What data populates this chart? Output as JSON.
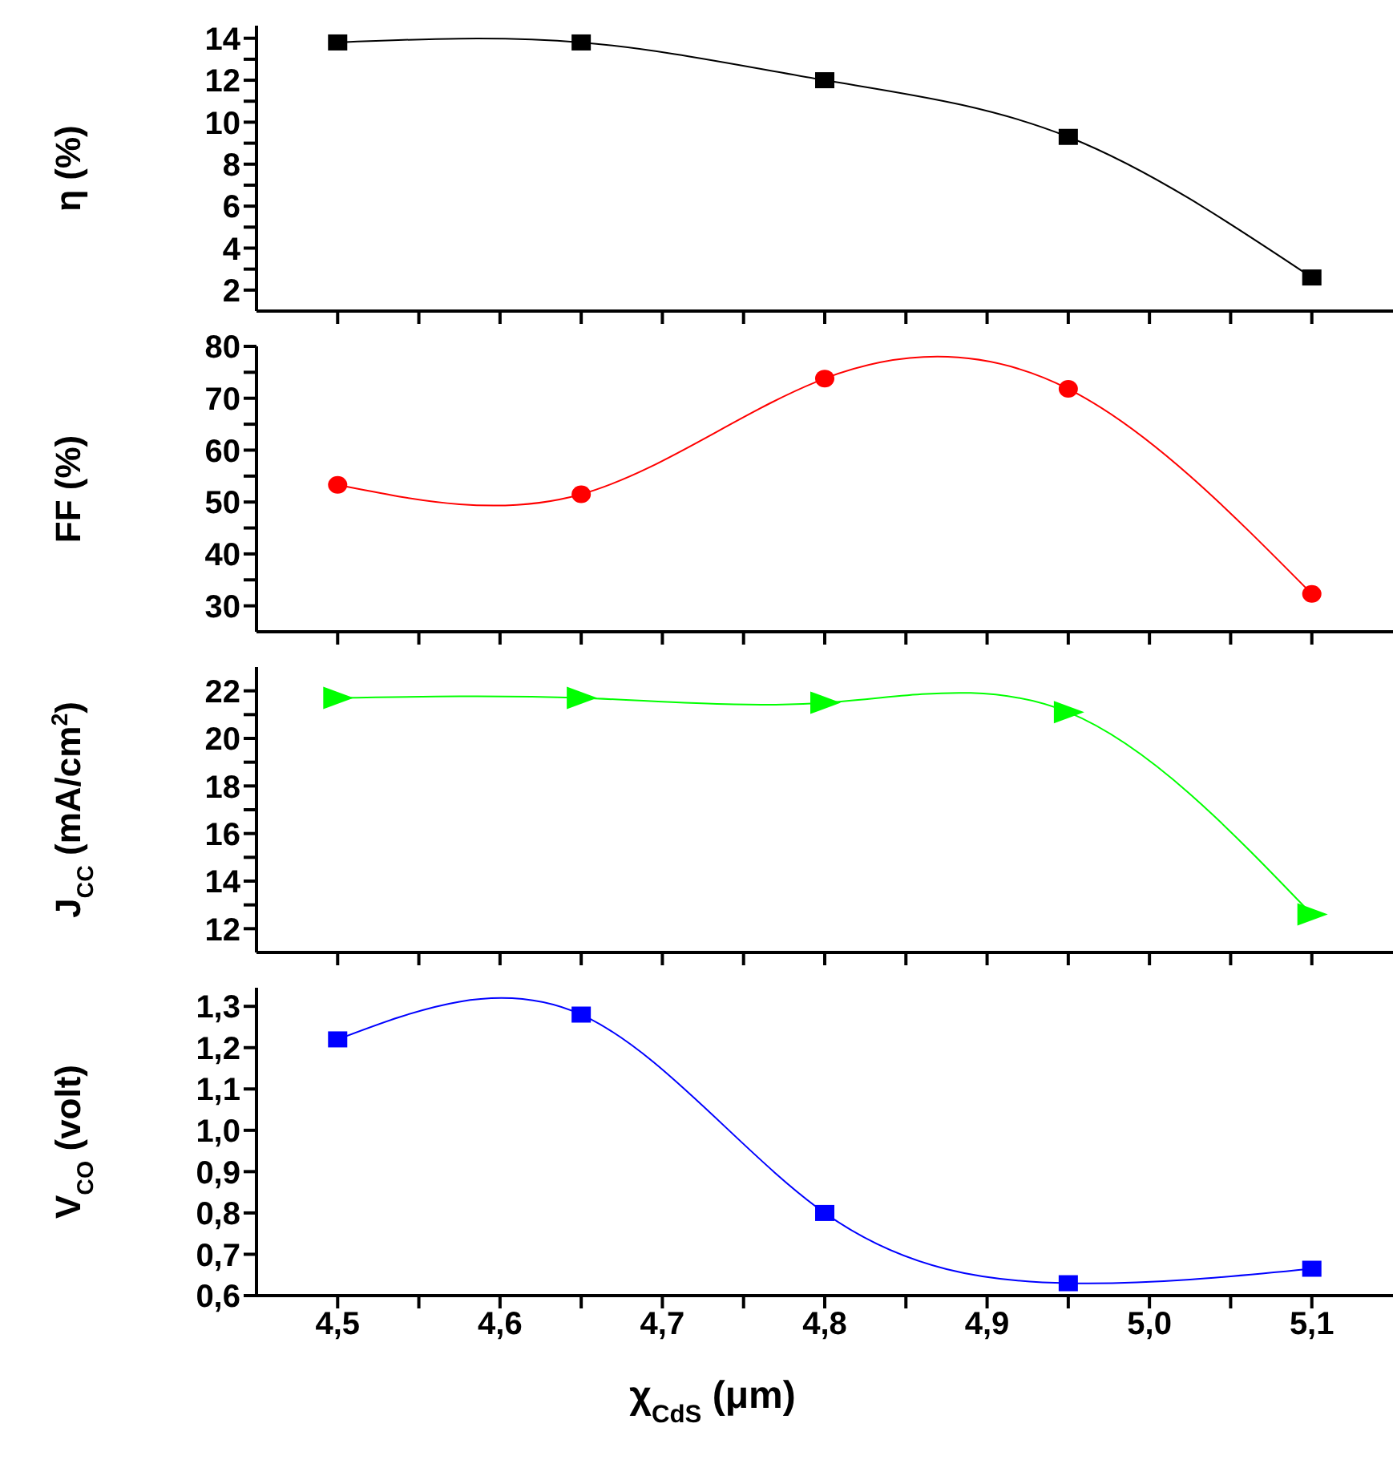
{
  "chart_data": [
    {
      "type": "line",
      "x": [
        4.5,
        4.65,
        4.8,
        4.95,
        5.1
      ],
      "series": [
        {
          "color": "#000000",
          "marker": "square",
          "values": [
            13.8,
            13.8,
            12.0,
            9.3,
            2.6
          ]
        }
      ],
      "ylabel": "η (%)",
      "xlim": [
        4.45,
        5.15
      ],
      "xticks": [
        {
          "value": 4.5,
          "label": null
        },
        {
          "value": 4.55,
          "label": null
        },
        {
          "value": 4.6,
          "label": null
        },
        {
          "value": 4.65,
          "label": null
        },
        {
          "value": 4.7,
          "label": null
        },
        {
          "value": 4.75,
          "label": null
        },
        {
          "value": 4.8,
          "label": null
        },
        {
          "value": 4.85,
          "label": null
        },
        {
          "value": 4.9,
          "label": null
        },
        {
          "value": 4.95,
          "label": null
        },
        {
          "value": 5.0,
          "label": null
        },
        {
          "value": 5.05,
          "label": null
        },
        {
          "value": 5.1,
          "label": null
        }
      ],
      "ylim": [
        1,
        14.6
      ],
      "yticks": [
        2,
        {
          "value": 3,
          "label": null
        },
        4,
        {
          "value": 5,
          "label": null
        },
        6,
        {
          "value": 7,
          "label": null
        },
        8,
        {
          "value": 9,
          "label": null
        },
        10,
        {
          "value": 11,
          "label": null
        },
        12,
        {
          "value": 13,
          "label": null
        },
        14
      ],
      "tick_labels": "y"
    },
    {
      "type": "line",
      "x": [
        4.5,
        4.65,
        4.8,
        4.95,
        5.1
      ],
      "series": [
        {
          "color": "#ff0000",
          "marker": "circle",
          "values": [
            53.3,
            51.5,
            73.8,
            71.8,
            32.3
          ]
        }
      ],
      "ylabel": "FF (%)",
      "xlim": [
        4.45,
        5.15
      ],
      "xticks": [
        {
          "value": 4.5,
          "label": null
        },
        {
          "value": 4.55,
          "label": null
        },
        {
          "value": 4.6,
          "label": null
        },
        {
          "value": 4.65,
          "label": null
        },
        {
          "value": 4.7,
          "label": null
        },
        {
          "value": 4.75,
          "label": null
        },
        {
          "value": 4.8,
          "label": null
        },
        {
          "value": 4.85,
          "label": null
        },
        {
          "value": 4.9,
          "label": null
        },
        {
          "value": 4.95,
          "label": null
        },
        {
          "value": 5.0,
          "label": null
        },
        {
          "value": 5.05,
          "label": null
        },
        {
          "value": 5.1,
          "label": null
        }
      ],
      "ylim": [
        25,
        80
      ],
      "yticks": [
        30,
        {
          "value": 35,
          "label": null
        },
        40,
        {
          "value": 45,
          "label": null
        },
        50,
        {
          "value": 55,
          "label": null
        },
        60,
        {
          "value": 65,
          "label": null
        },
        70,
        {
          "value": 75,
          "label": null
        },
        80
      ],
      "tick_labels": "y"
    },
    {
      "type": "line",
      "x": [
        4.5,
        4.65,
        4.8,
        4.95,
        5.1
      ],
      "series": [
        {
          "color": "#00ff00",
          "marker": "triangle",
          "values": [
            21.7,
            21.7,
            21.5,
            21.1,
            12.6
          ]
        }
      ],
      "ylabel": "J$_{CC}$ (mA/cm$^{2}$)",
      "xlim": [
        4.45,
        5.15
      ],
      "xticks": [
        {
          "value": 4.5,
          "label": null
        },
        {
          "value": 4.55,
          "label": null
        },
        {
          "value": 4.6,
          "label": null
        },
        {
          "value": 4.65,
          "label": null
        },
        {
          "value": 4.7,
          "label": null
        },
        {
          "value": 4.75,
          "label": null
        },
        {
          "value": 4.8,
          "label": null
        },
        {
          "value": 4.85,
          "label": null
        },
        {
          "value": 4.9,
          "label": null
        },
        {
          "value": 4.95,
          "label": null
        },
        {
          "value": 5.0,
          "label": null
        },
        {
          "value": 5.05,
          "label": null
        },
        {
          "value": 5.1,
          "label": null
        }
      ],
      "ylim": [
        11,
        23
      ],
      "yticks": [
        12,
        {
          "value": 13,
          "label": null
        },
        14,
        {
          "value": 15,
          "label": null
        },
        16,
        {
          "value": 17,
          "label": null
        },
        18,
        {
          "value": 19,
          "label": null
        },
        20,
        {
          "value": 21,
          "label": null
        },
        22
      ],
      "tick_labels": "y"
    },
    {
      "type": "line",
      "x": [
        4.5,
        4.65,
        4.8,
        4.95,
        5.1
      ],
      "series": [
        {
          "color": "#0000ff",
          "marker": "square",
          "values": [
            1.22,
            1.28,
            0.8,
            0.63,
            0.665
          ]
        }
      ],
      "ylabel": "V$_{CO}$ (volt)",
      "xlabel": "χ$_{CdS}$ (μm)",
      "xlim": [
        4.45,
        5.15
      ],
      "xticks": [
        {
          "value": 4.5,
          "label": "4,5"
        },
        {
          "value": 4.55,
          "label": null
        },
        {
          "value": 4.6,
          "label": "4,6"
        },
        {
          "value": 4.65,
          "label": null
        },
        {
          "value": 4.7,
          "label": "4,7"
        },
        {
          "value": 4.75,
          "label": null
        },
        {
          "value": 4.8,
          "label": "4,8"
        },
        {
          "value": 4.85,
          "label": null
        },
        {
          "value": 4.9,
          "label": "4,9"
        },
        {
          "value": 4.95,
          "label": null
        },
        {
          "value": 5.0,
          "label": "5,0"
        },
        {
          "value": 5.05,
          "label": null
        },
        {
          "value": 5.1,
          "label": "5,1"
        }
      ],
      "ylim": [
        0.6,
        1.345
      ],
      "yticks": [
        {
          "value": 0.6,
          "label": "0,6"
        },
        {
          "value": 0.7,
          "label": "0,7"
        },
        {
          "value": 0.8,
          "label": "0,8"
        },
        {
          "value": 0.9,
          "label": "0,9"
        },
        {
          "value": 1.0,
          "label": "1,0"
        },
        {
          "value": 1.1,
          "label": "1,1"
        },
        {
          "value": 1.2,
          "label": "1,2"
        },
        {
          "value": 1.3,
          "label": "1,3"
        }
      ]
    }
  ]
}
